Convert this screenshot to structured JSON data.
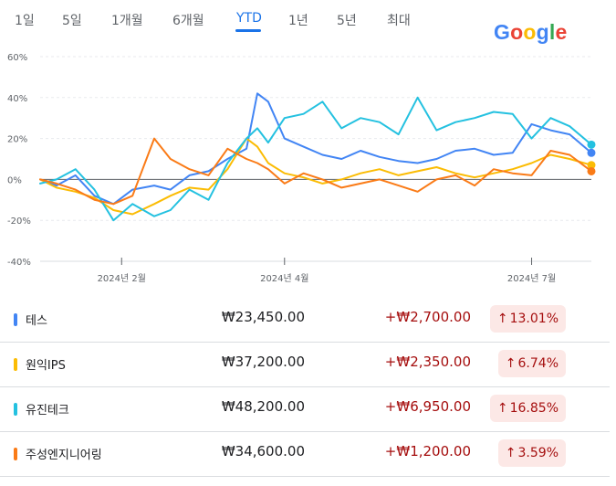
{
  "tabs": [
    {
      "label": "1일",
      "active": false
    },
    {
      "label": "5일",
      "active": false
    },
    {
      "label": "1개월",
      "active": false
    },
    {
      "label": "6개월",
      "active": false
    },
    {
      "label": "YTD",
      "active": true
    },
    {
      "label": "1년",
      "active": false
    },
    {
      "label": "5년",
      "active": false
    },
    {
      "label": "최대",
      "active": false
    }
  ],
  "logo": {
    "text": "Google",
    "colors": [
      "#4285F4",
      "#EA4335",
      "#FBBC05",
      "#4285F4",
      "#34A853",
      "#EA4335"
    ]
  },
  "chart_data": {
    "type": "line",
    "x_start": "2024-01-02",
    "x_end": "2024-07-23",
    "ylim": [
      -40,
      60
    ],
    "yticks": [
      "60%",
      "40%",
      "20%",
      "0%",
      "-20%",
      "-40%"
    ],
    "ytick_values": [
      60,
      40,
      20,
      0,
      -20,
      -40
    ],
    "xticks": [
      {
        "date": "2024-02-01",
        "label": "2024년 2월"
      },
      {
        "date": "2024-04-01",
        "label": "2024년 4월"
      },
      {
        "date": "2024-07-01",
        "label": "2024년 7월"
      }
    ],
    "grid": true,
    "series": [
      {
        "name": "테스",
        "color": "#4285f4",
        "x": [
          "2024-01-02",
          "2024-01-08",
          "2024-01-15",
          "2024-01-22",
          "2024-01-29",
          "2024-02-05",
          "2024-02-13",
          "2024-02-19",
          "2024-02-26",
          "2024-03-04",
          "2024-03-11",
          "2024-03-18",
          "2024-03-22",
          "2024-03-26",
          "2024-04-01",
          "2024-04-08",
          "2024-04-15",
          "2024-04-22",
          "2024-04-29",
          "2024-05-06",
          "2024-05-13",
          "2024-05-20",
          "2024-05-27",
          "2024-06-03",
          "2024-06-10",
          "2024-06-17",
          "2024-06-24",
          "2024-07-01",
          "2024-07-08",
          "2024-07-15",
          "2024-07-23"
        ],
        "y": [
          0,
          -3,
          2,
          -8,
          -12,
          -5,
          -3,
          -5,
          2,
          4,
          10,
          15,
          42,
          38,
          20,
          16,
          12,
          10,
          14,
          11,
          9,
          8,
          10,
          14,
          15,
          12,
          13,
          27,
          24,
          22,
          13
        ]
      },
      {
        "name": "원익IPS",
        "color": "#fbbc04",
        "x": [
          "2024-01-02",
          "2024-01-08",
          "2024-01-15",
          "2024-01-22",
          "2024-01-29",
          "2024-02-05",
          "2024-02-13",
          "2024-02-19",
          "2024-02-26",
          "2024-03-04",
          "2024-03-11",
          "2024-03-18",
          "2024-03-22",
          "2024-03-26",
          "2024-04-01",
          "2024-04-08",
          "2024-04-15",
          "2024-04-22",
          "2024-04-29",
          "2024-05-06",
          "2024-05-13",
          "2024-05-20",
          "2024-05-27",
          "2024-06-03",
          "2024-06-10",
          "2024-06-17",
          "2024-06-24",
          "2024-07-01",
          "2024-07-08",
          "2024-07-15",
          "2024-07-23"
        ],
        "y": [
          0,
          -4,
          -6,
          -9,
          -15,
          -17,
          -12,
          -8,
          -4,
          -5,
          5,
          20,
          16,
          8,
          3,
          1,
          -2,
          0,
          3,
          5,
          2,
          4,
          6,
          3,
          1,
          3,
          5,
          8,
          12,
          10,
          7
        ]
      },
      {
        "name": "유진테크",
        "color": "#24c1e0",
        "x": [
          "2024-01-02",
          "2024-01-08",
          "2024-01-15",
          "2024-01-22",
          "2024-01-29",
          "2024-02-05",
          "2024-02-13",
          "2024-02-19",
          "2024-02-26",
          "2024-03-04",
          "2024-03-11",
          "2024-03-18",
          "2024-03-22",
          "2024-03-26",
          "2024-04-01",
          "2024-04-08",
          "2024-04-15",
          "2024-04-22",
          "2024-04-29",
          "2024-05-06",
          "2024-05-13",
          "2024-05-20",
          "2024-05-27",
          "2024-06-03",
          "2024-06-10",
          "2024-06-17",
          "2024-06-24",
          "2024-07-01",
          "2024-07-08",
          "2024-07-15",
          "2024-07-23"
        ],
        "y": [
          -2,
          0,
          5,
          -5,
          -20,
          -12,
          -18,
          -15,
          -5,
          -10,
          8,
          20,
          25,
          18,
          30,
          32,
          38,
          25,
          30,
          28,
          22,
          40,
          24,
          28,
          30,
          33,
          32,
          20,
          30,
          26,
          17
        ]
      },
      {
        "name": "주성엔지니어링",
        "color": "#fa7b17",
        "x": [
          "2024-01-02",
          "2024-01-08",
          "2024-01-15",
          "2024-01-22",
          "2024-01-29",
          "2024-02-05",
          "2024-02-13",
          "2024-02-19",
          "2024-02-26",
          "2024-03-04",
          "2024-03-11",
          "2024-03-18",
          "2024-03-22",
          "2024-03-26",
          "2024-04-01",
          "2024-04-08",
          "2024-04-15",
          "2024-04-22",
          "2024-04-29",
          "2024-05-06",
          "2024-05-13",
          "2024-05-20",
          "2024-05-27",
          "2024-06-03",
          "2024-06-10",
          "2024-06-17",
          "2024-06-24",
          "2024-07-01",
          "2024-07-08",
          "2024-07-15",
          "2024-07-23"
        ],
        "y": [
          0,
          -2,
          -5,
          -10,
          -12,
          -8,
          20,
          10,
          5,
          2,
          15,
          10,
          8,
          5,
          -2,
          3,
          0,
          -4,
          -2,
          0,
          -3,
          -6,
          0,
          2,
          -3,
          5,
          3,
          2,
          14,
          12,
          4
        ]
      }
    ]
  },
  "stocks": [
    {
      "name": "테스",
      "price": "₩23,450.00",
      "change": "+₩2,700.00",
      "pct": "13.01%",
      "arrow": "↑",
      "color": "#4285f4"
    },
    {
      "name": "원익IPS",
      "price": "₩37,200.00",
      "change": "+₩2,350.00",
      "pct": "6.74%",
      "arrow": "↑",
      "color": "#fbbc04"
    },
    {
      "name": "유진테크",
      "price": "₩48,200.00",
      "change": "+₩6,950.00",
      "pct": "16.85%",
      "arrow": "↑",
      "color": "#24c1e0"
    },
    {
      "name": "주성엔지니어링",
      "price": "₩34,600.00",
      "change": "+₩1,200.00",
      "pct": "3.59%",
      "arrow": "↑",
      "color": "#fa7b17"
    }
  ]
}
